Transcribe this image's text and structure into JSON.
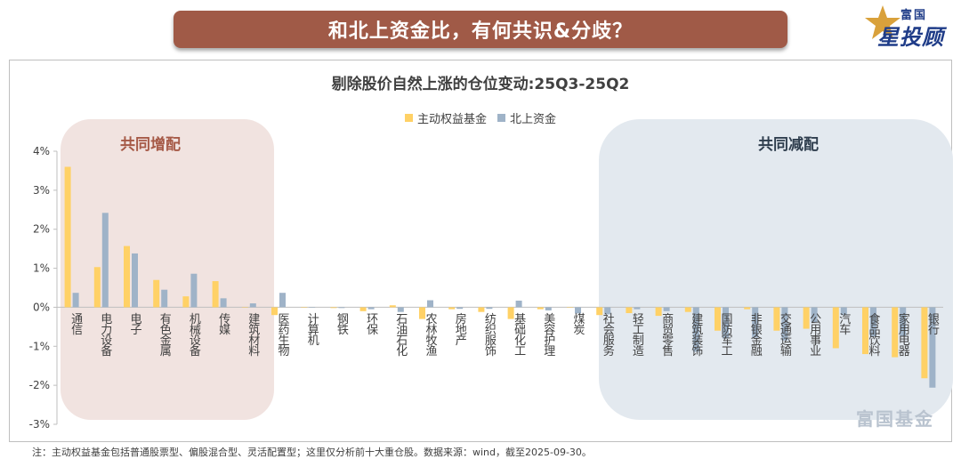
{
  "banner": {
    "title": "和北上资金比，有何共识&分歧？"
  },
  "logo": {
    "top_text": "富国",
    "main_text": "星投顾"
  },
  "annotations": {
    "increase_zone": "共同增配",
    "decrease_zone": "共同减配"
  },
  "watermark": "富国基金",
  "footnote": "注：主动权益基金包括普通股票型、偏股混合型、灵活配置型；这里仅分析前十大重仓股。数据来源：wind，截至2025-09-30。",
  "colors": {
    "active_fund": "#ffd166",
    "northbound": "#9fb3c8",
    "banner": "#a05a47",
    "increase_zone_bg": "#f1e3e0",
    "decrease_zone_bg": "#e3e9ef",
    "increase_label": "#a65a47",
    "decrease_label": "#2f3e4e"
  },
  "chart_data": {
    "type": "bar",
    "title": "剔除股价自然上涨的仓位变动:25Q3-25Q2",
    "legend_position": "top-center",
    "y_axis": {
      "ylim": [
        -3,
        4
      ],
      "ticks": [
        -3,
        -2,
        -1,
        0,
        1,
        2,
        3,
        4
      ],
      "format": "percent",
      "gridlines": false
    },
    "categories": [
      "通信",
      "电力设备",
      "电子",
      "有色金属",
      "机械设备",
      "传媒",
      "建筑材料",
      "医药生物",
      "计算机",
      "钢铁",
      "环保",
      "石油石化",
      "农林牧渔",
      "房地产",
      "纺织服饰",
      "基础化工",
      "美容护理",
      "煤炭",
      "社会服务",
      "轻工制造",
      "商贸零售",
      "建筑装饰",
      "国防军工",
      "非银金融",
      "交通运输",
      "公用事业",
      "汽车",
      "食品饮料",
      "家用电器",
      "银行"
    ],
    "series": [
      {
        "name": "主动权益基金",
        "values": [
          3.6,
          1.03,
          1.57,
          0.7,
          0.28,
          0.67,
          0.0,
          -0.2,
          0.0,
          -0.02,
          -0.1,
          0.05,
          -0.3,
          -0.05,
          -0.12,
          -0.3,
          -0.05,
          0.0,
          -0.2,
          -0.15,
          -0.22,
          -0.12,
          -0.6,
          -0.05,
          -0.6,
          -0.55,
          -1.05,
          -1.2,
          -1.28,
          -1.82
        ]
      },
      {
        "name": "北上资金",
        "values": [
          0.37,
          2.42,
          1.38,
          0.45,
          0.86,
          0.23,
          0.1,
          0.37,
          0.0,
          -0.02,
          -0.05,
          -0.12,
          0.18,
          -0.04,
          -0.04,
          0.17,
          -0.08,
          -0.16,
          -0.18,
          -0.05,
          -0.1,
          -1.14,
          -0.8,
          -0.78,
          -0.85,
          -0.38,
          -0.2,
          -0.75,
          -0.75,
          -2.06
        ]
      }
    ]
  }
}
